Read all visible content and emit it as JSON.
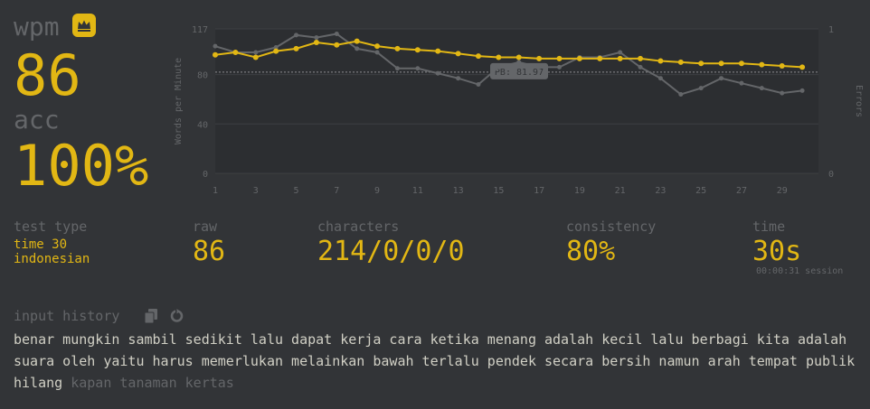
{
  "stats": {
    "wpm_label": "wpm",
    "wpm": "86",
    "acc_label": "acc",
    "acc": "100%"
  },
  "details": {
    "test_type_label": "test type",
    "test_type": "time 30",
    "language": "indonesian",
    "raw_label": "raw",
    "raw": "86",
    "characters_label": "characters",
    "characters": "214/0/0/0",
    "consistency_label": "consistency",
    "consistency": "80%",
    "time_label": "time",
    "time": "30s",
    "session": "00:00:31 session"
  },
  "history": {
    "label": "input history",
    "typed": "benar mungkin sambil sedikit lalu dapat kerja cara ketika menang adalah kecil lalu berbagi kita adalah suara oleh yaitu harus memerlukan melainkan bawah terlalu pendek secara bersih namun arah tempat publik hilang",
    "untyped": "kapan tanaman kertas"
  },
  "icons": {
    "crown": "crown-icon",
    "copy": "copy-icon",
    "replay": "replay-icon"
  },
  "colors": {
    "background": "#323437",
    "accent": "#e2b714",
    "text": "#d1d0c5",
    "muted": "#646669"
  },
  "chart_data": {
    "type": "line",
    "x": [
      1,
      2,
      3,
      4,
      5,
      6,
      7,
      8,
      9,
      10,
      11,
      12,
      13,
      14,
      15,
      16,
      17,
      18,
      19,
      20,
      21,
      22,
      23,
      24,
      25,
      26,
      27,
      28,
      29,
      30
    ],
    "x_ticks": [
      "1",
      "3",
      "5",
      "7",
      "9",
      "11",
      "13",
      "15",
      "17",
      "19",
      "21",
      "23",
      "25",
      "27",
      "29"
    ],
    "y_ticks": [
      "0",
      "40",
      "80",
      "117"
    ],
    "y2_ticks": [
      "0",
      "1"
    ],
    "ylabel": "Words per Minute",
    "y2label": "Errors",
    "ylim": [
      0,
      117
    ],
    "series": [
      {
        "values": [
          96,
          98,
          94,
          99,
          101,
          106,
          104,
          107,
          103,
          101,
          100,
          99,
          97,
          95,
          94,
          94,
          93,
          93,
          93,
          93,
          93,
          93,
          91,
          90,
          89,
          89,
          89,
          88,
          87,
          86
        ],
        "color": "#e2b714"
      },
      {
        "values": [
          103,
          98,
          98,
          102,
          112,
          110,
          113,
          101,
          98,
          85,
          85,
          81,
          77,
          72,
          86,
          90,
          86,
          86,
          94,
          94,
          98,
          86,
          77,
          64,
          69,
          77,
          73,
          69,
          65,
          67
        ],
        "color": "#646669"
      }
    ],
    "annotation": "PB: 81.97",
    "annotation_value": 81.97
  }
}
